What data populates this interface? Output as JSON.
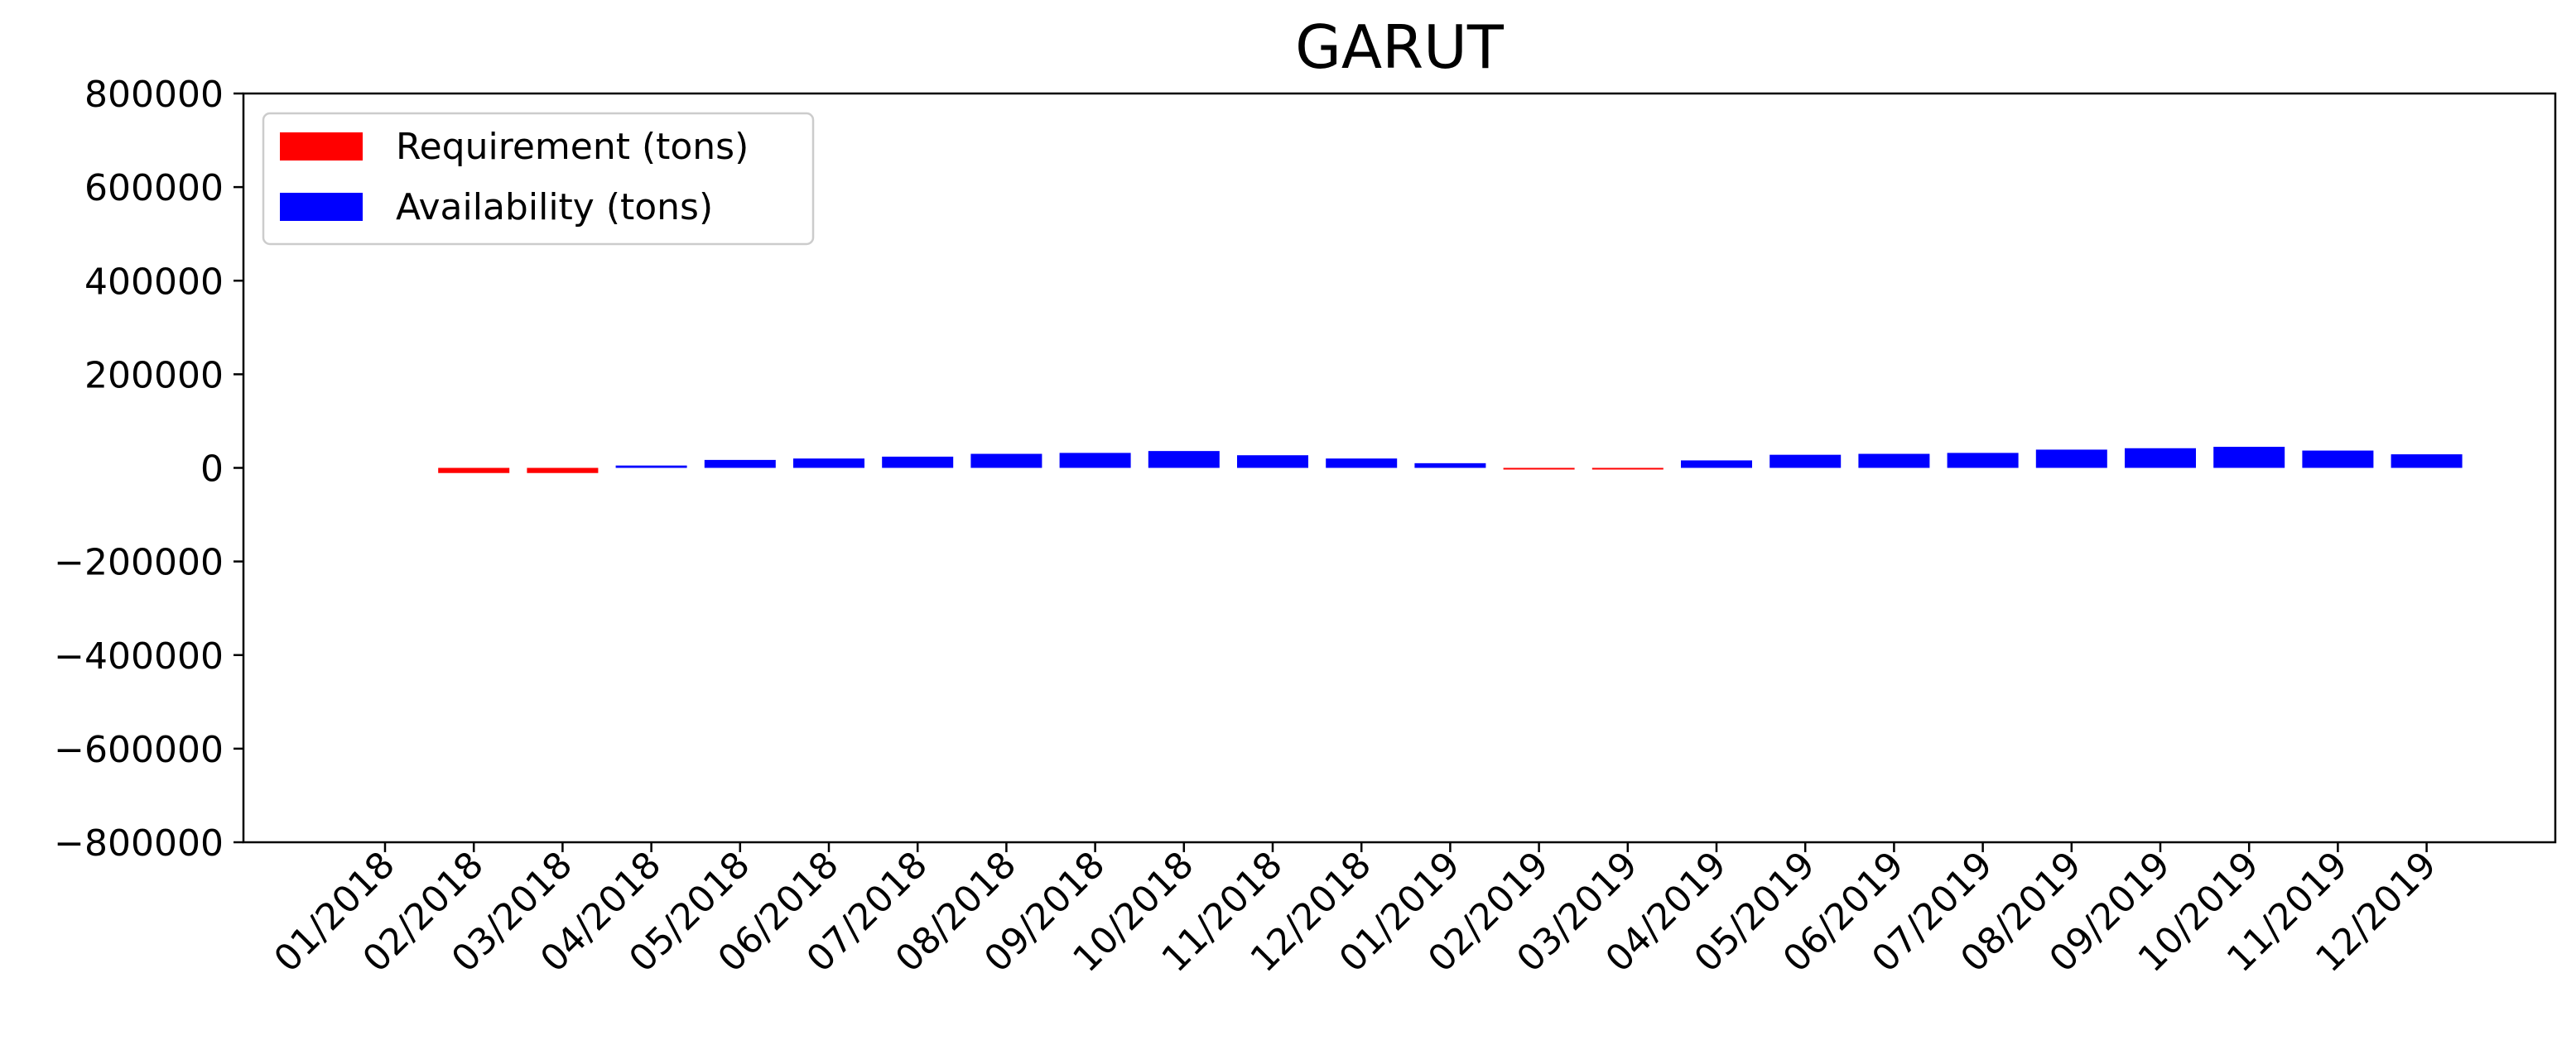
{
  "chart_data": {
    "type": "bar",
    "title": "GARUT",
    "xlabel": "",
    "ylabel": "",
    "ylim": [
      -800000,
      800000
    ],
    "yticks": [
      800000,
      600000,
      400000,
      200000,
      0,
      -200000,
      -400000,
      -600000,
      -800000
    ],
    "ytick_labels": [
      "800000",
      "600000",
      "400000",
      "200000",
      "0",
      "−200000",
      "−400000",
      "−600000",
      "−800000"
    ],
    "categories": [
      "01/2018",
      "02/2018",
      "03/2018",
      "04/2018",
      "05/2018",
      "06/2018",
      "07/2018",
      "08/2018",
      "09/2018",
      "10/2018",
      "11/2018",
      "12/2018",
      "01/2019",
      "02/2019",
      "03/2019",
      "04/2019",
      "05/2019",
      "06/2019",
      "07/2019",
      "08/2019",
      "09/2019",
      "10/2019",
      "11/2019",
      "12/2019"
    ],
    "values": [
      0,
      -11000,
      -11000,
      5000,
      17000,
      20000,
      24000,
      30000,
      32000,
      36000,
      27000,
      20000,
      10000,
      -3000,
      -3000,
      16000,
      28000,
      30000,
      32000,
      39000,
      42000,
      45000,
      37000,
      29000
    ],
    "legend_position": "upper left",
    "grid": false,
    "series": [
      {
        "name": "Requirement (tons)",
        "color": "#ff0000"
      },
      {
        "name": "Availability (tons)",
        "color": "#0000ff"
      }
    ]
  }
}
